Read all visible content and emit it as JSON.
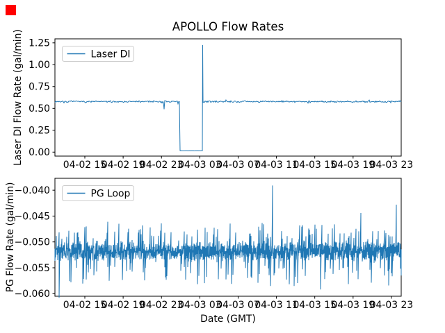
{
  "click_marker": {
    "color": "#ff0000"
  },
  "chart_data": [
    {
      "type": "line",
      "title": "APOLLO Flow Rates",
      "ylabel": "Laser DI Flow Rate (gal/min)",
      "legend": {
        "label": "Laser DI",
        "position": "upper left"
      },
      "line_color": "#1f77b4",
      "grid": false,
      "x_epoch": "hours since 04-02 12:00 GMT",
      "xlim_hours": [
        -0.12,
        36.02
      ],
      "x_ticks_hours": [
        3,
        7,
        11,
        15,
        19,
        23,
        27,
        31,
        35
      ],
      "x_tick_labels": [
        "04-02 15",
        "04-02 19",
        "04-02 23",
        "04-03 03",
        "04-03 07",
        "04-03 11",
        "04-03 15",
        "04-03 19",
        "04-03 23"
      ],
      "ylim": [
        -0.0455,
        1.296
      ],
      "y_ticks": [
        0.0,
        0.25,
        0.5,
        0.75,
        1.0,
        1.25
      ],
      "y_tick_labels": [
        "0.00",
        "0.25",
        "0.50",
        "0.75",
        "1.00",
        "1.25"
      ],
      "series": {
        "name": "Laser DI",
        "baseline_gpm": 0.578,
        "noise_halfwidth": 0.011,
        "dropout": {
          "start_hours": 12.9,
          "end_hours": 15.3,
          "value": 0.015,
          "start_time": "04-03 00:54",
          "end_time": "04-03 03:18"
        },
        "recovery_spike": {
          "hours": 15.3,
          "peak_gpm": 1.225
        },
        "dips": [
          {
            "hours": 11.3,
            "value": 0.49
          },
          {
            "hours": 12.7,
            "value": 0.553
          }
        ]
      }
    },
    {
      "type": "line",
      "title": "",
      "ylabel": "PG Flow Rate (gal/min)",
      "xlabel": "Date (GMT)",
      "legend": {
        "label": "PG Loop",
        "position": "upper left"
      },
      "line_color": "#1f77b4",
      "grid": false,
      "x_epoch": "hours since 04-02 12:00 GMT",
      "xlim_hours": [
        -0.12,
        36.02
      ],
      "x_ticks_hours": [
        3,
        7,
        11,
        15,
        19,
        23,
        27,
        31,
        35
      ],
      "x_tick_labels": [
        "04-02 15",
        "04-02 19",
        "04-02 23",
        "04-03 03",
        "04-03 07",
        "04-03 11",
        "04-03 15",
        "04-03 19",
        "04-03 23"
      ],
      "ylim": [
        -0.0605,
        -0.0377
      ],
      "y_ticks": [
        -0.04,
        -0.045,
        -0.05,
        -0.055,
        -0.06
      ],
      "y_tick_labels": [
        "−0.040",
        "−0.045",
        "−0.050",
        "−0.055",
        "−0.060"
      ],
      "series": {
        "name": "PG Loop",
        "baseline_gpm": -0.0518,
        "dense_noise_halfwidth": 0.0021,
        "spike_probability_up": 0.22,
        "spike_probability_down": 0.25,
        "spike_extra_up": 0.0042,
        "spike_extra_down": 0.0055,
        "anomalies": [
          {
            "hours": 0.3,
            "value": -0.0608
          },
          {
            "hours": 5.4,
            "value": -0.0461
          },
          {
            "hours": 22.6,
            "value": -0.0391
          },
          {
            "hours": 27.6,
            "value": -0.0592
          },
          {
            "hours": 31.8,
            "value": -0.0444
          },
          {
            "hours": 35.5,
            "value": -0.0428
          }
        ]
      }
    }
  ]
}
